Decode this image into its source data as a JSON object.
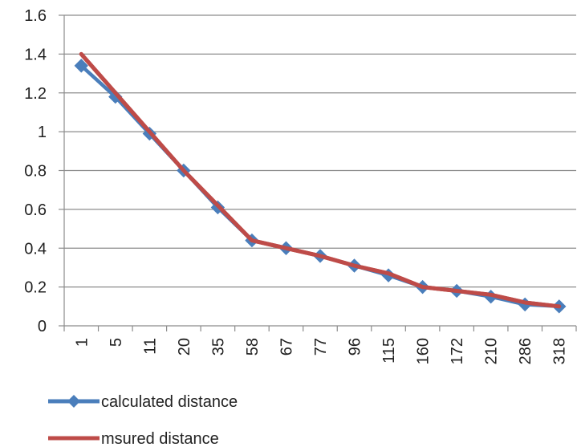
{
  "chart_data": {
    "type": "line",
    "title": "",
    "xlabel": "",
    "ylabel": "",
    "categories": [
      "1",
      "5",
      "11",
      "20",
      "35",
      "58",
      "67",
      "77",
      "96",
      "115",
      "160",
      "172",
      "210",
      "286",
      "318"
    ],
    "ylim": [
      0,
      1.6
    ],
    "yticks": [
      "0",
      "0.2",
      "0.4",
      "0.6",
      "0.8",
      "1",
      "1.2",
      "1.4",
      "1.6"
    ],
    "grid": true,
    "legend_position": "bottom-left",
    "series": [
      {
        "name": "calculated distance",
        "color": "#4A7EBB",
        "marker": "diamond",
        "values": [
          1.34,
          1.18,
          0.99,
          0.8,
          0.61,
          0.44,
          0.4,
          0.36,
          0.31,
          0.26,
          0.2,
          0.18,
          0.15,
          0.11,
          0.1
        ]
      },
      {
        "name": "msured distance",
        "color": "#BE4B48",
        "marker": "none",
        "values": [
          1.4,
          1.2,
          1.0,
          0.8,
          0.62,
          0.44,
          0.4,
          0.36,
          0.31,
          0.27,
          0.2,
          0.18,
          0.16,
          0.12,
          0.1
        ]
      }
    ]
  }
}
